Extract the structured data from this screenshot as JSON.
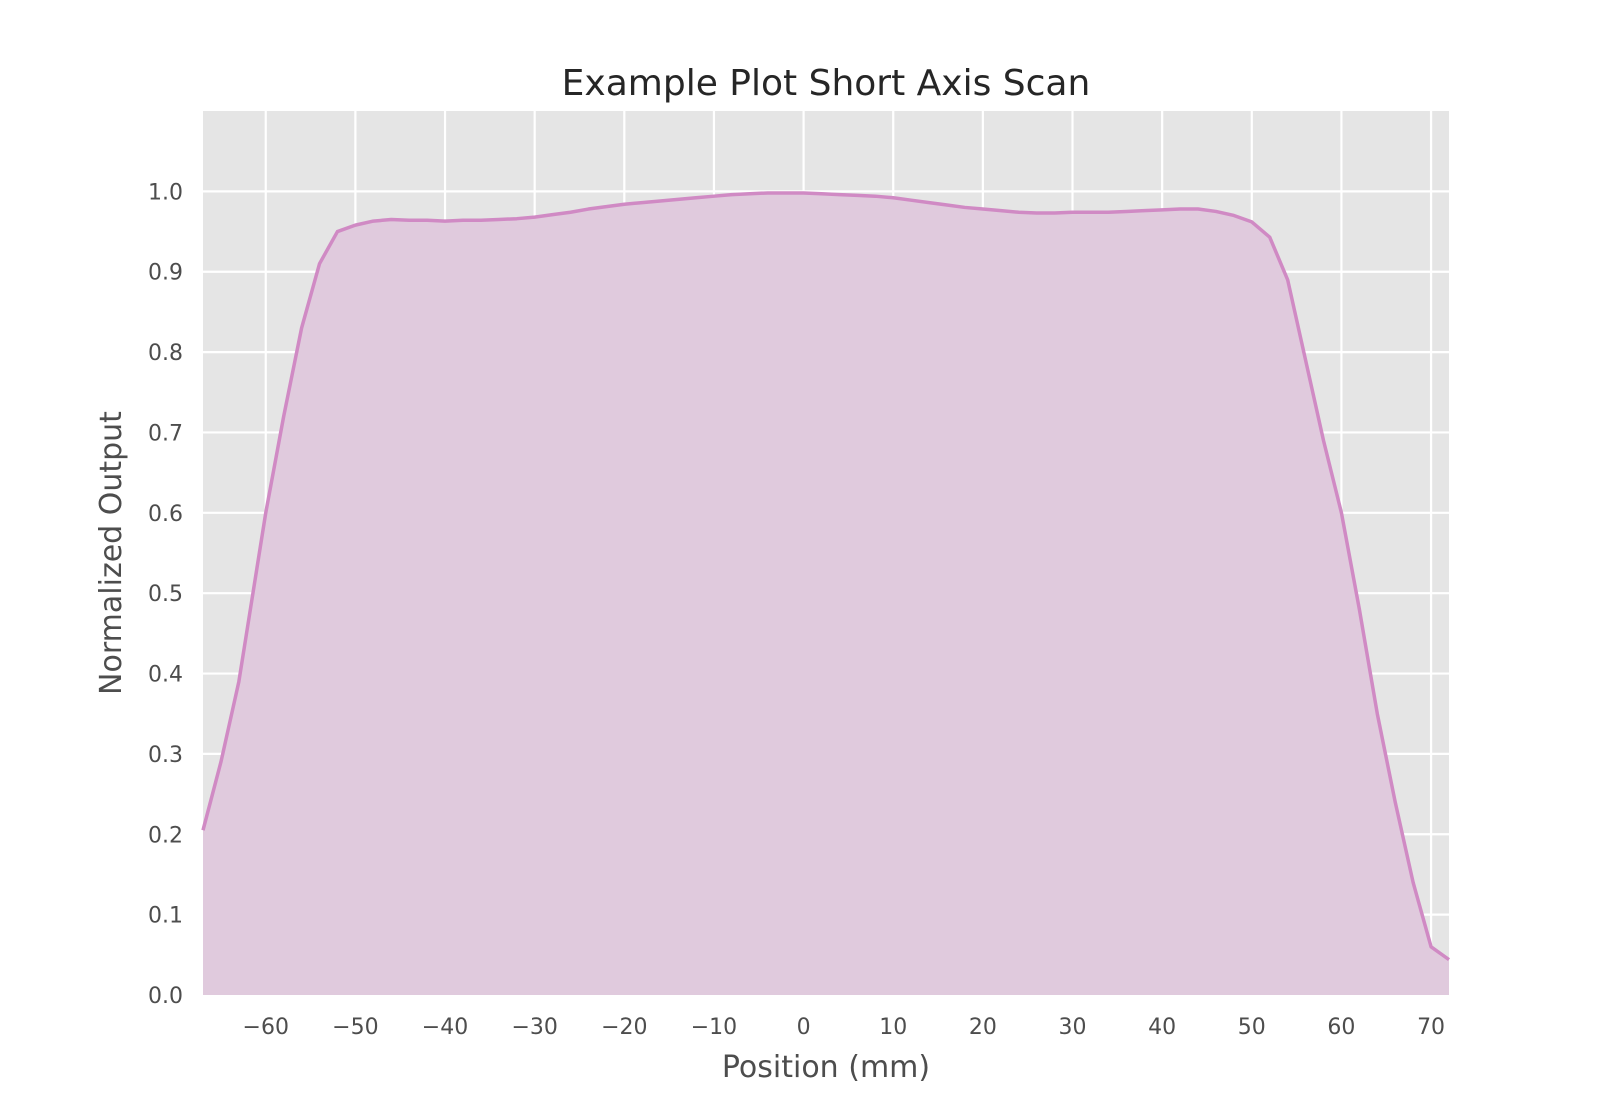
{
  "chart_data": {
    "type": "area",
    "title": "Example Plot Short Axis Scan",
    "xlabel": "Position (mm)",
    "ylabel": "Normalized Output",
    "xlim": [
      -67,
      72
    ],
    "ylim": [
      0.0,
      1.1
    ],
    "xticks": [
      -60,
      -50,
      -40,
      -30,
      -20,
      -10,
      0,
      10,
      20,
      30,
      40,
      50,
      60,
      70
    ],
    "xtick_labels": [
      "−60",
      "−50",
      "−40",
      "−30",
      "−20",
      "−10",
      "0",
      "10",
      "20",
      "30",
      "40",
      "50",
      "60",
      "70"
    ],
    "yticks": [
      0.0,
      0.1,
      0.2,
      0.3,
      0.4,
      0.5,
      0.6,
      0.7,
      0.8,
      0.9,
      1.0
    ],
    "ytick_labels": [
      "0.0",
      "0.1",
      "0.2",
      "0.3",
      "0.4",
      "0.5",
      "0.6",
      "0.7",
      "0.8",
      "0.9",
      "1.0"
    ],
    "grid": true,
    "legend": "none",
    "colors": {
      "line": "#d08ac4",
      "fill": "#e0cadd",
      "plot_background": "#e5e5e5",
      "grid": "#ffffff"
    },
    "series": [
      {
        "x": [
          -67,
          -65,
          -63,
          -61,
          -60,
          -58,
          -56,
          -54,
          -52,
          -50,
          -48,
          -46,
          -44,
          -42,
          -40,
          -38,
          -36,
          -34,
          -32,
          -30,
          -28,
          -26,
          -24,
          -22,
          -20,
          -18,
          -16,
          -14,
          -12,
          -10,
          -8,
          -6,
          -4,
          -2,
          0,
          2,
          4,
          6,
          8,
          10,
          12,
          14,
          16,
          18,
          20,
          22,
          24,
          26,
          28,
          30,
          32,
          34,
          36,
          38,
          40,
          42,
          44,
          46,
          48,
          50,
          52,
          54,
          56,
          58,
          60,
          62,
          64,
          66,
          68,
          70,
          72
        ],
        "y": [
          0.205,
          0.29,
          0.39,
          0.53,
          0.6,
          0.72,
          0.83,
          0.91,
          0.95,
          0.958,
          0.963,
          0.965,
          0.964,
          0.964,
          0.963,
          0.964,
          0.964,
          0.965,
          0.966,
          0.968,
          0.971,
          0.974,
          0.978,
          0.981,
          0.984,
          0.986,
          0.988,
          0.99,
          0.992,
          0.994,
          0.996,
          0.997,
          0.998,
          0.998,
          0.998,
          0.997,
          0.996,
          0.995,
          0.994,
          0.992,
          0.989,
          0.986,
          0.983,
          0.98,
          0.978,
          0.976,
          0.974,
          0.973,
          0.973,
          0.974,
          0.974,
          0.974,
          0.975,
          0.976,
          0.977,
          0.978,
          0.978,
          0.975,
          0.97,
          0.962,
          0.943,
          0.89,
          0.79,
          0.69,
          0.6,
          0.48,
          0.35,
          0.24,
          0.14,
          0.06,
          0.044
        ]
      }
    ]
  }
}
